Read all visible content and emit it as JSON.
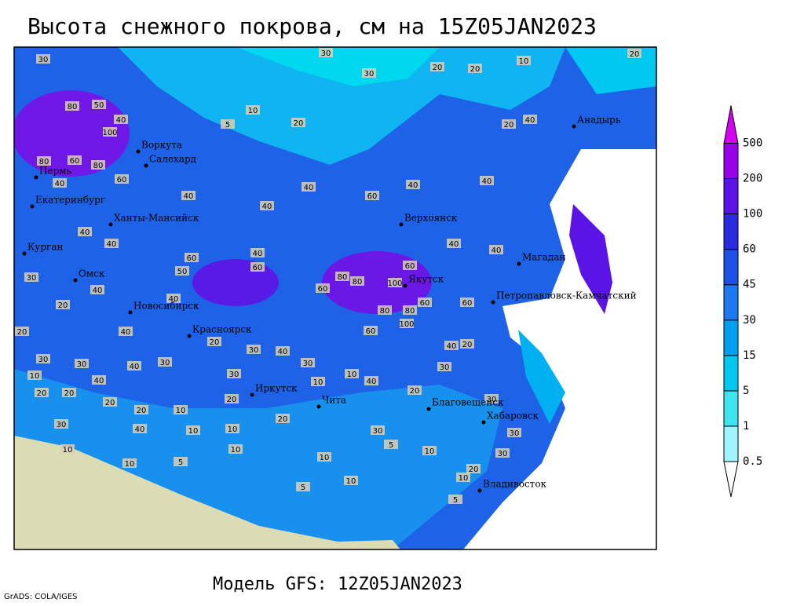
{
  "title": "Высота снежного покрова, см на 15Z05JAN2023",
  "footer": "Модель GFS: 12Z05JAN2023",
  "credit": "GrADS: COLA/IGES",
  "colorbar": {
    "levels": [
      0.5,
      1,
      5,
      15,
      30,
      45,
      60,
      100,
      200,
      500
    ],
    "colors": [
      "#ffffff",
      "#a0f4ff",
      "#40e4f0",
      "#00c8f0",
      "#00a0f0",
      "#1e78f0",
      "#1e50e8",
      "#2a2ae0",
      "#5a14e6",
      "#9600e8",
      "#d400f0"
    ]
  },
  "cities": [
    "Воркута",
    "Салехард",
    "Пермь",
    "Екатеринбург",
    "Ханты-Мансийск",
    "Курган",
    "Омск",
    "Новосибирск",
    "Красноярск",
    "Иркутск",
    "Чита",
    "Верхоянск",
    "Якутск",
    "Анадырь",
    "Магадан",
    "Петропавловск-Камчатский",
    "Благовещенск",
    "Хабаровск",
    "Владивосток"
  ],
  "contour_labels": [
    30,
    30,
    30,
    20,
    20,
    10,
    20,
    80,
    50,
    40,
    100,
    5,
    10,
    20,
    20,
    40,
    80,
    60,
    80,
    60,
    40,
    40,
    40,
    60,
    40,
    40,
    40,
    40,
    40,
    40,
    60,
    60,
    60,
    40,
    40,
    30,
    40,
    50,
    60,
    80,
    80,
    100,
    60,
    60,
    20,
    40,
    80,
    80,
    20,
    40,
    60,
    100,
    40,
    20,
    30,
    30,
    40,
    30,
    20,
    30,
    40,
    30,
    10,
    40,
    30,
    10,
    40,
    30,
    20,
    20,
    20,
    20,
    10,
    20,
    10,
    20,
    30,
    30,
    40,
    10,
    10,
    20,
    30,
    30,
    10,
    10,
    10,
    10,
    10,
    30,
    5,
    10,
    5,
    5,
    5,
    20,
    10
  ]
}
